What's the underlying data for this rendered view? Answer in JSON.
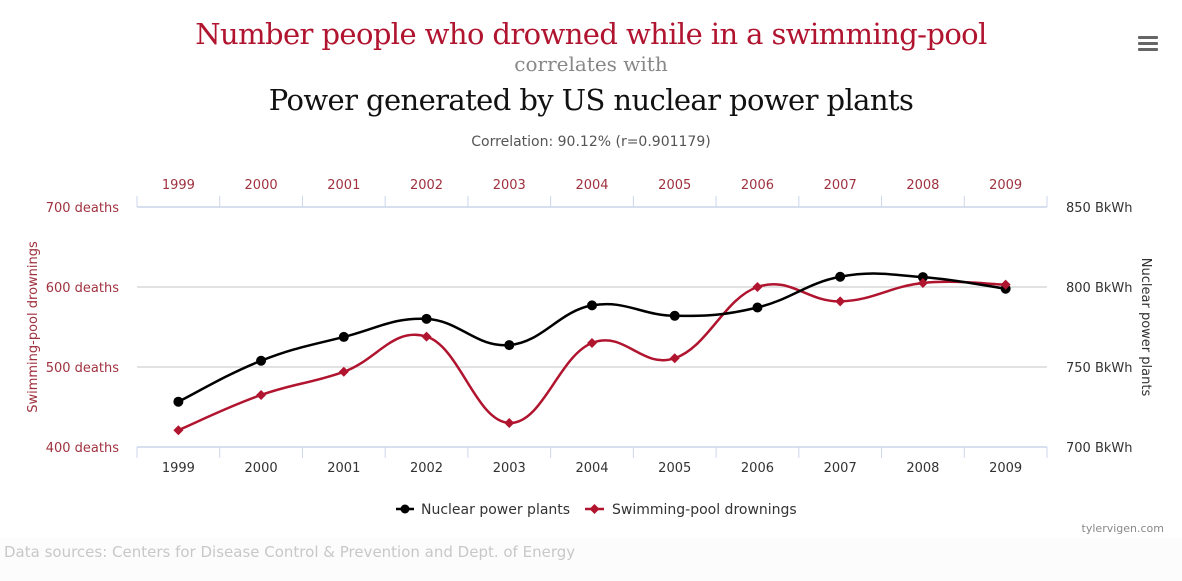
{
  "header": {
    "title_primary": "Number people who drowned while in a swimming-pool",
    "connector": "correlates with",
    "title_secondary": "Power generated by US nuclear power plants",
    "correlation": "Correlation: 90.12% (r=0.901179)"
  },
  "menu": {
    "icon": "hamburger-menu-icon"
  },
  "colors": {
    "primary": "#b0142f",
    "secondary": "#000000",
    "left_axis_text": "#a0323f",
    "right_axis_text": "#333333"
  },
  "chart_data": {
    "type": "line",
    "title": "Number people who drowned while in a swimming-pool correlates with Power generated by US nuclear power plants",
    "categories": [
      "1999",
      "2000",
      "2001",
      "2002",
      "2003",
      "2004",
      "2005",
      "2006",
      "2007",
      "2008",
      "2009"
    ],
    "series": [
      {
        "name": "Nuclear power plants",
        "axis": "right",
        "marker": "circle",
        "color": "#000000",
        "values": [
          728.3,
          753.9,
          768.8,
          780.1,
          763.7,
          788.5,
          782.0,
          787.2,
          806.4,
          806.2,
          798.9
        ]
      },
      {
        "name": "Swimming-pool drownings",
        "axis": "left",
        "marker": "diamond",
        "color": "#b0142f",
        "values": [
          421,
          465,
          494,
          538,
          430,
          530,
          511,
          600,
          582,
          605,
          603
        ]
      }
    ],
    "left_axis": {
      "label": "Swimming-pool drownings",
      "range": [
        400,
        700
      ],
      "ticks": [
        400,
        500,
        600,
        700
      ],
      "tick_labels": [
        "400 deaths",
        "500 deaths",
        "600 deaths",
        "700 deaths"
      ]
    },
    "right_axis": {
      "label": "Nuclear power plants",
      "range": [
        700,
        850
      ],
      "ticks": [
        700,
        750,
        800,
        850
      ],
      "tick_labels": [
        "700 BkWh",
        "750 BkWh",
        "800 BkWh",
        "850 BkWh"
      ]
    },
    "top_axis_labels": [
      "1999",
      "2000",
      "2001",
      "2002",
      "2003",
      "2004",
      "2005",
      "2006",
      "2007",
      "2008",
      "2009"
    ],
    "bottom_axis_labels": [
      "1999",
      "2000",
      "2001",
      "2002",
      "2003",
      "2004",
      "2005",
      "2006",
      "2007",
      "2008",
      "2009"
    ],
    "grid": true,
    "legend": {
      "placement": "bottom-center",
      "entries": [
        "Nuclear power plants",
        "Swimming-pool drownings"
      ]
    }
  },
  "footer": {
    "credit": "tylervigen.com",
    "sources": "Data sources: Centers for Disease Control & Prevention and Dept. of Energy"
  }
}
